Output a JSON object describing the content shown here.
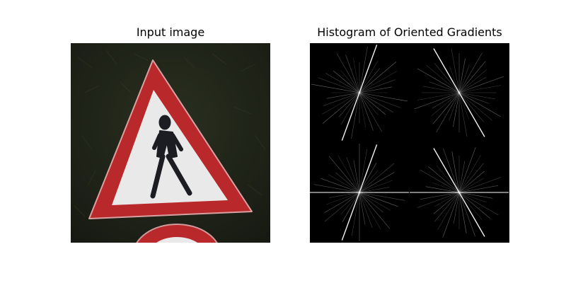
{
  "figure": {
    "left_title": "Input image",
    "right_title": "Histogram of Oriented Gradients"
  },
  "colors": {
    "background": "#ffffff",
    "photo_background": "#1f2418",
    "sign_red": "#b9282a",
    "sign_white": "#e9e9ea",
    "pictogram": "#1b1d22",
    "hog_background": "#000000",
    "hog_lines": "#ffffff"
  }
}
